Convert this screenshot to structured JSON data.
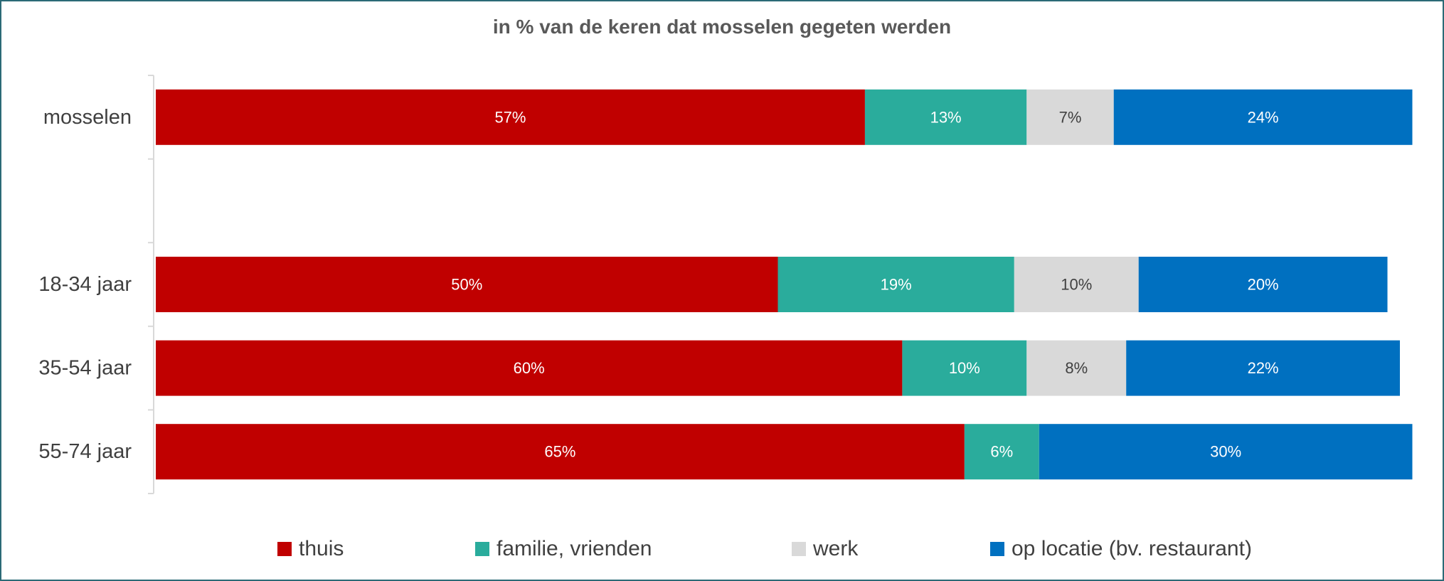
{
  "chart_data": {
    "type": "bar",
    "orientation": "horizontal",
    "stacked": true,
    "title": "in % van de keren dat mosselen gegeten werden",
    "categories": [
      "mosselen",
      "",
      "18-34 jaar",
      "35-54 jaar",
      "55-74 jaar"
    ],
    "series": [
      {
        "name": "thuis",
        "color": "#c00000",
        "values": [
          57,
          null,
          50,
          60,
          65
        ],
        "labels": [
          "57%",
          "",
          "50%",
          "60%",
          "65%"
        ]
      },
      {
        "name": "familie, vrienden",
        "color": "#2aac9c",
        "values": [
          13,
          null,
          19,
          10,
          6
        ],
        "labels": [
          "13%",
          "",
          "19%",
          "10%",
          "6%"
        ]
      },
      {
        "name": "werk",
        "color": "#d9d9d9",
        "values": [
          7,
          null,
          10,
          8,
          0
        ],
        "labels": [
          "7%",
          "",
          "10%",
          "8%",
          ""
        ]
      },
      {
        "name": "op locatie (bv. restaurant)",
        "color": "#0070c0",
        "values": [
          24,
          null,
          20,
          22,
          30
        ],
        "labels": [
          "24%",
          "",
          "20%",
          "22%",
          "30%"
        ]
      }
    ],
    "xlim": [
      0,
      100
    ],
    "grid": false,
    "legend_position": "bottom"
  }
}
